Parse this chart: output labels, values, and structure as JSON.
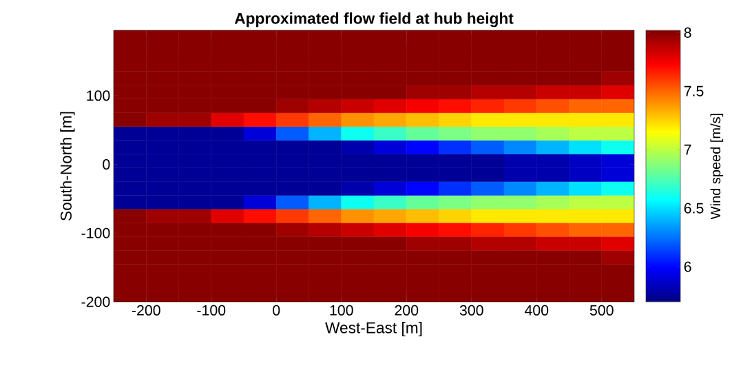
{
  "chart_data": {
    "type": "heatmap",
    "title": "Approximated flow field at hub height",
    "xlabel": "West-East [m]",
    "ylabel": "South-North [m]",
    "clabel": "Wind speed [m/s]",
    "x": [
      -225,
      -175,
      -125,
      -75,
      -25,
      25,
      75,
      125,
      175,
      225,
      275,
      325,
      375,
      425,
      475,
      525
    ],
    "y": [
      185,
      165,
      145,
      125,
      105,
      85,
      65,
      45,
      25,
      5,
      -15,
      -35,
      -55,
      -75,
      -95,
      -115,
      -135,
      -155,
      -175,
      -195
    ],
    "xlim": [
      -250,
      550
    ],
    "ylim": [
      -200,
      195
    ],
    "xticks": [
      -200,
      -100,
      0,
      100,
      200,
      300,
      400,
      500
    ],
    "yticks": [
      -200,
      -100,
      0,
      100
    ],
    "clim": [
      5.7,
      8.02
    ],
    "cticks": [
      6,
      6.5,
      7,
      7.5,
      8
    ],
    "cells": [
      [
        8,
        8,
        8,
        8,
        8,
        8,
        8,
        8,
        8,
        8,
        8,
        8,
        8,
        8,
        8,
        8
      ],
      [
        8,
        8,
        8,
        8,
        8,
        8,
        8,
        8,
        8,
        8,
        8,
        8,
        8,
        8,
        8,
        8
      ],
      [
        8,
        8,
        8,
        8,
        8,
        8,
        8,
        8,
        8,
        8,
        8,
        8,
        8,
        8,
        8,
        8
      ],
      [
        8,
        8,
        8,
        8,
        8,
        8,
        8,
        8,
        8,
        8,
        8,
        8,
        8,
        8,
        8,
        7.95
      ],
      [
        8,
        8,
        8,
        8,
        8,
        8,
        8,
        8,
        8,
        7.95,
        7.95,
        7.9,
        7.9,
        7.85,
        7.85,
        7.8
      ],
      [
        8,
        8,
        8,
        8,
        8,
        7.95,
        7.9,
        7.85,
        7.8,
        7.75,
        7.7,
        7.65,
        7.6,
        7.55,
        7.5,
        7.5
      ],
      [
        8,
        7.95,
        7.95,
        7.8,
        7.7,
        7.6,
        7.5,
        7.4,
        7.35,
        7.3,
        7.25,
        7.2,
        7.2,
        7.2,
        7.2,
        7.2
      ],
      [
        5.75,
        5.75,
        5.75,
        5.75,
        5.9,
        6.2,
        6.4,
        6.6,
        6.7,
        6.8,
        6.85,
        6.9,
        6.9,
        6.95,
        7.0,
        7.0
      ],
      [
        5.75,
        5.75,
        5.75,
        5.75,
        5.75,
        5.75,
        5.75,
        5.8,
        5.9,
        6.0,
        6.1,
        6.2,
        6.3,
        6.4,
        6.5,
        6.6
      ],
      [
        5.75,
        5.75,
        5.75,
        5.75,
        5.75,
        5.75,
        5.75,
        5.75,
        5.75,
        5.75,
        5.75,
        5.75,
        5.8,
        5.8,
        5.85,
        5.9
      ],
      [
        5.75,
        5.75,
        5.75,
        5.75,
        5.75,
        5.75,
        5.75,
        5.75,
        5.75,
        5.75,
        5.75,
        5.75,
        5.8,
        5.8,
        5.85,
        5.9
      ],
      [
        5.75,
        5.75,
        5.75,
        5.75,
        5.75,
        5.75,
        5.75,
        5.8,
        5.9,
        6.0,
        6.1,
        6.2,
        6.3,
        6.4,
        6.5,
        6.6
      ],
      [
        5.75,
        5.75,
        5.75,
        5.75,
        5.9,
        6.2,
        6.4,
        6.6,
        6.7,
        6.8,
        6.85,
        6.9,
        6.9,
        6.95,
        7.0,
        7.0
      ],
      [
        8,
        7.95,
        7.95,
        7.8,
        7.7,
        7.6,
        7.5,
        7.4,
        7.35,
        7.3,
        7.25,
        7.2,
        7.2,
        7.2,
        7.2,
        7.2
      ],
      [
        8,
        8,
        8,
        8,
        8,
        7.95,
        7.9,
        7.85,
        7.8,
        7.75,
        7.7,
        7.65,
        7.6,
        7.55,
        7.5,
        7.5
      ],
      [
        8,
        8,
        8,
        8,
        8,
        8,
        8,
        8,
        8,
        7.95,
        7.95,
        7.9,
        7.9,
        7.85,
        7.85,
        7.8
      ],
      [
        8,
        8,
        8,
        8,
        8,
        8,
        8,
        8,
        8,
        8,
        8,
        8,
        8,
        8,
        8,
        7.95
      ],
      [
        8,
        8,
        8,
        8,
        8,
        8,
        8,
        8,
        8,
        8,
        8,
        8,
        8,
        8,
        8,
        8
      ],
      [
        8,
        8,
        8,
        8,
        8,
        8,
        8,
        8,
        8,
        8,
        8,
        8,
        8,
        8,
        8,
        8
      ],
      [
        8,
        8,
        8,
        8,
        8,
        8,
        8,
        8,
        8,
        8,
        8,
        8,
        8,
        8,
        8,
        8
      ]
    ]
  }
}
